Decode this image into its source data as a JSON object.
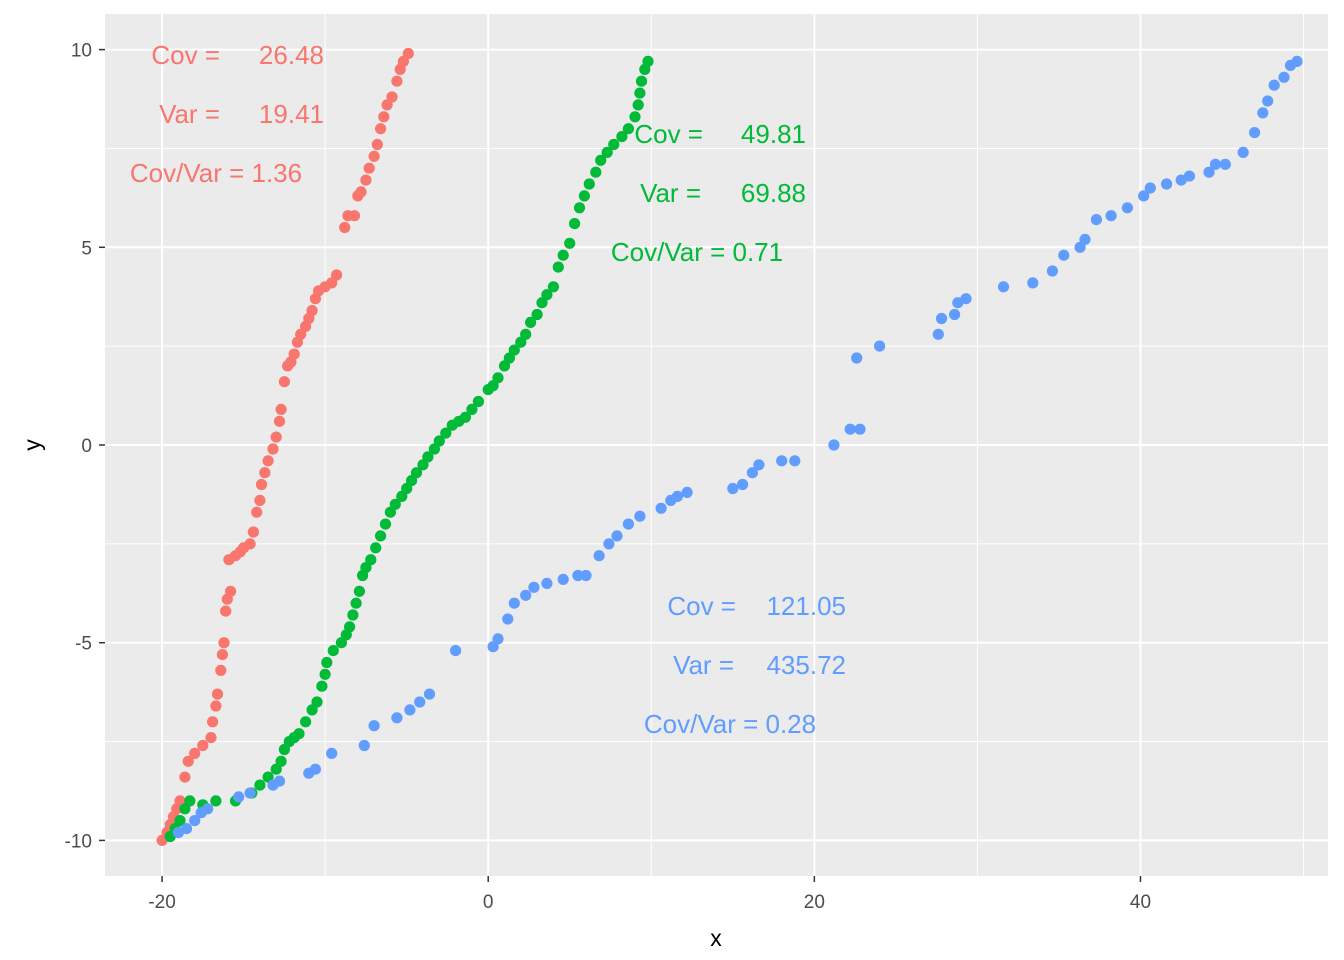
{
  "chart_data": {
    "type": "scatter",
    "title": "",
    "xlabel": "x",
    "ylabel": "y",
    "xlim": [
      -23.5,
      51.5
    ],
    "ylim": [
      -10.9,
      10.9
    ],
    "x_ticks": [
      -20,
      0,
      20,
      40
    ],
    "x_tick_labels": [
      "-20",
      "0",
      "20",
      "40"
    ],
    "y_ticks": [
      -10,
      -5,
      0,
      5,
      10
    ],
    "y_tick_labels": [
      "-10",
      "-5",
      "0",
      "5",
      "10"
    ],
    "grid": true,
    "panel_background": "#ebebeb",
    "legend": "none",
    "series": [
      {
        "color": "#f8766d",
        "points": [
          [
            -20.0,
            -10.0
          ],
          [
            -19.7,
            -9.8
          ],
          [
            -19.5,
            -9.6
          ],
          [
            -19.3,
            -9.4
          ],
          [
            -19.1,
            -9.2
          ],
          [
            -18.9,
            -9.0
          ],
          [
            -18.6,
            -8.4
          ],
          [
            -18.4,
            -8.0
          ],
          [
            -18.0,
            -7.8
          ],
          [
            -17.5,
            -7.6
          ],
          [
            -17.0,
            -7.4
          ],
          [
            -16.9,
            -7.0
          ],
          [
            -16.7,
            -6.6
          ],
          [
            -16.6,
            -6.3
          ],
          [
            -16.4,
            -5.7
          ],
          [
            -16.3,
            -5.3
          ],
          [
            -16.2,
            -5.0
          ],
          [
            -16.1,
            -4.2
          ],
          [
            -16.0,
            -3.9
          ],
          [
            -15.8,
            -3.7
          ],
          [
            -15.9,
            -2.9
          ],
          [
            -15.5,
            -2.8
          ],
          [
            -15.2,
            -2.7
          ],
          [
            -15.0,
            -2.6
          ],
          [
            -14.6,
            -2.5
          ],
          [
            -14.4,
            -2.2
          ],
          [
            -14.2,
            -1.7
          ],
          [
            -14.0,
            -1.4
          ],
          [
            -13.9,
            -1.0
          ],
          [
            -13.7,
            -0.7
          ],
          [
            -13.5,
            -0.4
          ],
          [
            -13.2,
            -0.1
          ],
          [
            -13.0,
            0.2
          ],
          [
            -12.8,
            0.6
          ],
          [
            -12.7,
            0.9
          ],
          [
            -12.5,
            1.6
          ],
          [
            -12.3,
            2.0
          ],
          [
            -12.1,
            2.1
          ],
          [
            -11.9,
            2.3
          ],
          [
            -11.7,
            2.6
          ],
          [
            -11.5,
            2.8
          ],
          [
            -11.2,
            3.0
          ],
          [
            -11.0,
            3.2
          ],
          [
            -10.8,
            3.4
          ],
          [
            -10.6,
            3.7
          ],
          [
            -10.4,
            3.9
          ],
          [
            -10.0,
            4.0
          ],
          [
            -9.6,
            4.1
          ],
          [
            -9.3,
            4.3
          ],
          [
            -8.8,
            5.5
          ],
          [
            -8.6,
            5.8
          ],
          [
            -8.2,
            5.8
          ],
          [
            -8.0,
            6.3
          ],
          [
            -7.8,
            6.4
          ],
          [
            -7.5,
            6.7
          ],
          [
            -7.3,
            7.0
          ],
          [
            -7.0,
            7.3
          ],
          [
            -6.8,
            7.6
          ],
          [
            -6.6,
            8.0
          ],
          [
            -6.4,
            8.3
          ],
          [
            -6.2,
            8.6
          ],
          [
            -5.9,
            8.8
          ],
          [
            -5.6,
            9.2
          ],
          [
            -5.4,
            9.5
          ],
          [
            -5.2,
            9.7
          ],
          [
            -4.9,
            9.9
          ]
        ]
      },
      {
        "color": "#00ba38",
        "points": [
          [
            -19.5,
            -9.9
          ],
          [
            -19.2,
            -9.7
          ],
          [
            -18.9,
            -9.5
          ],
          [
            -18.6,
            -9.2
          ],
          [
            -18.3,
            -9.0
          ],
          [
            -17.5,
            -9.1
          ],
          [
            -16.7,
            -9.0
          ],
          [
            -15.5,
            -9.0
          ],
          [
            -14.5,
            -8.8
          ],
          [
            -14.0,
            -8.6
          ],
          [
            -13.5,
            -8.4
          ],
          [
            -13.0,
            -8.2
          ],
          [
            -12.7,
            -8.0
          ],
          [
            -12.5,
            -7.7
          ],
          [
            -12.2,
            -7.5
          ],
          [
            -11.9,
            -7.4
          ],
          [
            -11.6,
            -7.3
          ],
          [
            -11.2,
            -7.0
          ],
          [
            -10.8,
            -6.7
          ],
          [
            -10.5,
            -6.5
          ],
          [
            -10.2,
            -6.1
          ],
          [
            -10.0,
            -5.8
          ],
          [
            -9.9,
            -5.5
          ],
          [
            -9.5,
            -5.2
          ],
          [
            -9.0,
            -5.0
          ],
          [
            -8.7,
            -4.8
          ],
          [
            -8.5,
            -4.6
          ],
          [
            -8.3,
            -4.3
          ],
          [
            -8.1,
            -4.0
          ],
          [
            -7.9,
            -3.7
          ],
          [
            -7.7,
            -3.3
          ],
          [
            -7.5,
            -3.1
          ],
          [
            -7.2,
            -2.9
          ],
          [
            -6.9,
            -2.6
          ],
          [
            -6.6,
            -2.3
          ],
          [
            -6.3,
            -2.0
          ],
          [
            -6.0,
            -1.7
          ],
          [
            -5.7,
            -1.5
          ],
          [
            -5.3,
            -1.3
          ],
          [
            -5.0,
            -1.1
          ],
          [
            -4.7,
            -0.9
          ],
          [
            -4.4,
            -0.7
          ],
          [
            -4.0,
            -0.5
          ],
          [
            -3.7,
            -0.3
          ],
          [
            -3.3,
            -0.1
          ],
          [
            -3.0,
            0.1
          ],
          [
            -2.6,
            0.3
          ],
          [
            -2.2,
            0.5
          ],
          [
            -1.8,
            0.6
          ],
          [
            -1.4,
            0.7
          ],
          [
            -1.0,
            0.9
          ],
          [
            -0.6,
            1.1
          ],
          [
            0.0,
            1.4
          ],
          [
            0.3,
            1.5
          ],
          [
            0.6,
            1.7
          ],
          [
            1.0,
            2.0
          ],
          [
            1.3,
            2.2
          ],
          [
            1.6,
            2.4
          ],
          [
            2.0,
            2.6
          ],
          [
            2.3,
            2.8
          ],
          [
            2.6,
            3.1
          ],
          [
            3.0,
            3.3
          ],
          [
            3.3,
            3.6
          ],
          [
            3.6,
            3.8
          ],
          [
            4.0,
            4.0
          ],
          [
            4.3,
            4.5
          ],
          [
            4.6,
            4.8
          ],
          [
            5.0,
            5.1
          ],
          [
            5.3,
            5.6
          ],
          [
            5.6,
            6.0
          ],
          [
            5.9,
            6.3
          ],
          [
            6.2,
            6.6
          ],
          [
            6.6,
            6.9
          ],
          [
            6.9,
            7.2
          ],
          [
            7.3,
            7.4
          ],
          [
            7.7,
            7.6
          ],
          [
            8.2,
            7.8
          ],
          [
            8.6,
            8.0
          ],
          [
            9.0,
            8.3
          ],
          [
            9.2,
            8.6
          ],
          [
            9.3,
            8.9
          ],
          [
            9.4,
            9.2
          ],
          [
            9.6,
            9.5
          ],
          [
            9.8,
            9.7
          ]
        ]
      },
      {
        "color": "#619cff",
        "points": [
          [
            -19.0,
            -9.8
          ],
          [
            -18.5,
            -9.7
          ],
          [
            -18.0,
            -9.5
          ],
          [
            -17.6,
            -9.3
          ],
          [
            -17.2,
            -9.2
          ],
          [
            -15.3,
            -8.9
          ],
          [
            -14.6,
            -8.8
          ],
          [
            -13.2,
            -8.6
          ],
          [
            -12.8,
            -8.5
          ],
          [
            -11.0,
            -8.3
          ],
          [
            -10.6,
            -8.2
          ],
          [
            -9.6,
            -7.8
          ],
          [
            -7.6,
            -7.6
          ],
          [
            -7.0,
            -7.1
          ],
          [
            -5.6,
            -6.9
          ],
          [
            -4.8,
            -6.7
          ],
          [
            -4.2,
            -6.5
          ],
          [
            -3.6,
            -6.3
          ],
          [
            -2.0,
            -5.2
          ],
          [
            0.3,
            -5.1
          ],
          [
            0.6,
            -4.9
          ],
          [
            1.2,
            -4.4
          ],
          [
            1.6,
            -4.0
          ],
          [
            2.3,
            -3.8
          ],
          [
            2.8,
            -3.6
          ],
          [
            3.6,
            -3.5
          ],
          [
            4.6,
            -3.4
          ],
          [
            5.5,
            -3.3
          ],
          [
            6.0,
            -3.3
          ],
          [
            6.8,
            -2.8
          ],
          [
            7.4,
            -2.5
          ],
          [
            7.9,
            -2.3
          ],
          [
            8.6,
            -2.0
          ],
          [
            9.3,
            -1.8
          ],
          [
            10.6,
            -1.6
          ],
          [
            11.2,
            -1.4
          ],
          [
            11.6,
            -1.3
          ],
          [
            12.2,
            -1.2
          ],
          [
            15.0,
            -1.1
          ],
          [
            15.6,
            -1.0
          ],
          [
            16.2,
            -0.7
          ],
          [
            16.6,
            -0.5
          ],
          [
            18.0,
            -0.4
          ],
          [
            18.8,
            -0.4
          ],
          [
            21.2,
            0.0
          ],
          [
            22.2,
            0.4
          ],
          [
            22.8,
            0.4
          ],
          [
            22.6,
            2.2
          ],
          [
            24.0,
            2.5
          ],
          [
            27.6,
            2.8
          ],
          [
            27.8,
            3.2
          ],
          [
            28.6,
            3.3
          ],
          [
            28.8,
            3.6
          ],
          [
            29.3,
            3.7
          ],
          [
            31.6,
            4.0
          ],
          [
            33.4,
            4.1
          ],
          [
            34.6,
            4.4
          ],
          [
            35.3,
            4.8
          ],
          [
            36.3,
            5.0
          ],
          [
            36.6,
            5.2
          ],
          [
            37.3,
            5.7
          ],
          [
            38.2,
            5.8
          ],
          [
            39.2,
            6.0
          ],
          [
            40.2,
            6.3
          ],
          [
            40.6,
            6.5
          ],
          [
            41.6,
            6.6
          ],
          [
            42.5,
            6.7
          ],
          [
            43.0,
            6.8
          ],
          [
            44.2,
            6.9
          ],
          [
            44.6,
            7.1
          ],
          [
            45.2,
            7.1
          ],
          [
            46.3,
            7.4
          ],
          [
            47.0,
            7.9
          ],
          [
            47.5,
            8.4
          ],
          [
            47.8,
            8.7
          ],
          [
            48.2,
            9.1
          ],
          [
            48.8,
            9.3
          ],
          [
            49.2,
            9.6
          ],
          [
            49.6,
            9.7
          ]
        ]
      }
    ],
    "annotations": [
      {
        "color": "#f8766d",
        "lines": [
          {
            "label": "Cov =",
            "value": "26.48"
          },
          {
            "label": "Var =",
            "value": "19.41"
          },
          {
            "label": "Cov/Var = 1.36",
            "value": ""
          }
        ]
      },
      {
        "color": "#00ba38",
        "lines": [
          {
            "label": "Cov =",
            "value": "49.81"
          },
          {
            "label": "Var =",
            "value": "69.88"
          },
          {
            "label": "Cov/Var = 0.71",
            "value": ""
          }
        ]
      },
      {
        "color": "#619cff",
        "lines": [
          {
            "label": "Cov =",
            "value": "121.05"
          },
          {
            "label": "Var =",
            "value": "435.72"
          },
          {
            "label": "Cov/Var = 0.28",
            "value": ""
          }
        ]
      }
    ]
  }
}
